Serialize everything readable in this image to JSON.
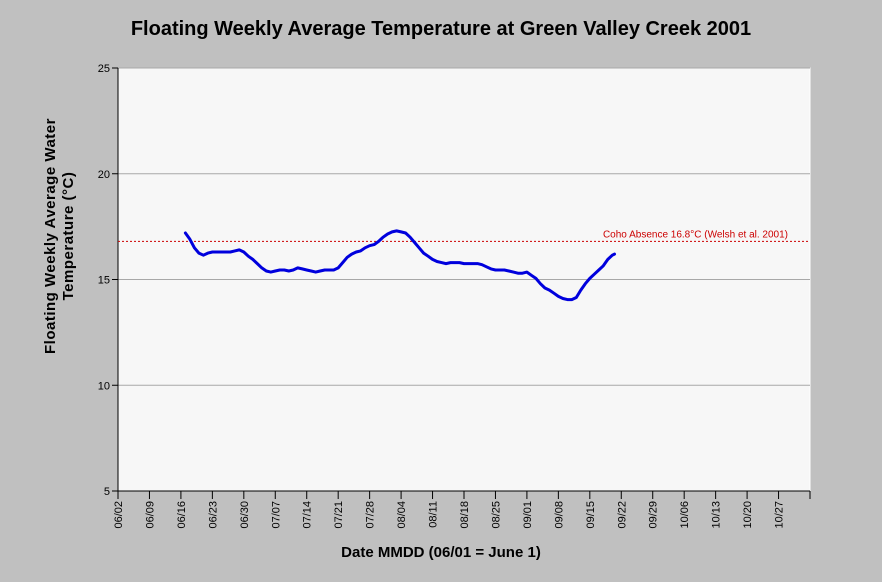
{
  "chart_data": {
    "type": "line",
    "title": "Floating Weekly Average Temperature at Green Valley Creek 2001",
    "ylabel_line1": "Floating Weekly Average Water",
    "ylabel_line2": "Temperature (°C)",
    "xlabel": "Date MMDD (06/01 = June 1)",
    "ylim": [
      5,
      25
    ],
    "yticks": [
      5,
      10,
      15,
      20,
      25
    ],
    "xlim": [
      0,
      154
    ],
    "xticks": [
      {
        "day": 0,
        "label": "06/02"
      },
      {
        "day": 7,
        "label": "06/09"
      },
      {
        "day": 14,
        "label": "06/16"
      },
      {
        "day": 21,
        "label": "06/23"
      },
      {
        "day": 28,
        "label": "06/30"
      },
      {
        "day": 35,
        "label": "07/07"
      },
      {
        "day": 42,
        "label": "07/14"
      },
      {
        "day": 49,
        "label": "07/21"
      },
      {
        "day": 56,
        "label": "07/28"
      },
      {
        "day": 63,
        "label": "08/04"
      },
      {
        "day": 70,
        "label": "08/11"
      },
      {
        "day": 77,
        "label": "08/18"
      },
      {
        "day": 84,
        "label": "08/25"
      },
      {
        "day": 91,
        "label": "09/01"
      },
      {
        "day": 98,
        "label": "09/08"
      },
      {
        "day": 105,
        "label": "09/15"
      },
      {
        "day": 112,
        "label": "09/22"
      },
      {
        "day": 119,
        "label": "09/29"
      },
      {
        "day": 126,
        "label": "10/06"
      },
      {
        "day": 133,
        "label": "10/13"
      },
      {
        "day": 140,
        "label": "10/20"
      },
      {
        "day": 147,
        "label": "10/27"
      }
    ],
    "grid": true,
    "reference_line": {
      "value": 16.8,
      "label": "Coho Absence 16.8°C (Welsh et al. 2001)",
      "color": "#cc0000"
    },
    "series": [
      {
        "color": "#0000dd",
        "points": [
          [
            15.0,
            17.2
          ],
          [
            16.0,
            16.9
          ],
          [
            17.0,
            16.5
          ],
          [
            18.0,
            16.25
          ],
          [
            19.0,
            16.15
          ],
          [
            20.0,
            16.25
          ],
          [
            21.0,
            16.3
          ],
          [
            22.0,
            16.3
          ],
          [
            23.0,
            16.3
          ],
          [
            24.0,
            16.3
          ],
          [
            25.0,
            16.3
          ],
          [
            26.0,
            16.35
          ],
          [
            27.0,
            16.4
          ],
          [
            28.0,
            16.3
          ],
          [
            29.0,
            16.1
          ],
          [
            30.0,
            15.95
          ],
          [
            31.0,
            15.75
          ],
          [
            32.0,
            15.55
          ],
          [
            33.0,
            15.4
          ],
          [
            34.0,
            15.35
          ],
          [
            35.0,
            15.4
          ],
          [
            36.0,
            15.45
          ],
          [
            37.0,
            15.45
          ],
          [
            38.0,
            15.4
          ],
          [
            39.0,
            15.45
          ],
          [
            40.0,
            15.55
          ],
          [
            41.0,
            15.5
          ],
          [
            42.0,
            15.45
          ],
          [
            43.0,
            15.4
          ],
          [
            44.0,
            15.35
          ],
          [
            45.0,
            15.4
          ],
          [
            46.0,
            15.45
          ],
          [
            47.0,
            15.45
          ],
          [
            48.0,
            15.45
          ],
          [
            49.0,
            15.55
          ],
          [
            50.0,
            15.8
          ],
          [
            51.0,
            16.05
          ],
          [
            52.0,
            16.2
          ],
          [
            53.0,
            16.3
          ],
          [
            54.0,
            16.35
          ],
          [
            55.0,
            16.5
          ],
          [
            56.0,
            16.6
          ],
          [
            57.0,
            16.65
          ],
          [
            58.0,
            16.8
          ],
          [
            59.0,
            17.0
          ],
          [
            60.0,
            17.15
          ],
          [
            61.0,
            17.25
          ],
          [
            62.0,
            17.3
          ],
          [
            63.0,
            17.25
          ],
          [
            64.0,
            17.2
          ],
          [
            65.0,
            17.0
          ],
          [
            66.0,
            16.75
          ],
          [
            67.0,
            16.5
          ],
          [
            68.0,
            16.25
          ],
          [
            69.0,
            16.1
          ],
          [
            70.0,
            15.95
          ],
          [
            71.0,
            15.85
          ],
          [
            72.0,
            15.8
          ],
          [
            73.0,
            15.75
          ],
          [
            74.0,
            15.8
          ],
          [
            75.0,
            15.8
          ],
          [
            76.0,
            15.8
          ],
          [
            77.0,
            15.75
          ],
          [
            78.0,
            15.75
          ],
          [
            79.0,
            15.75
          ],
          [
            80.0,
            15.75
          ],
          [
            81.0,
            15.7
          ],
          [
            82.0,
            15.6
          ],
          [
            83.0,
            15.5
          ],
          [
            84.0,
            15.45
          ],
          [
            85.0,
            15.45
          ],
          [
            86.0,
            15.45
          ],
          [
            87.0,
            15.4
          ],
          [
            88.0,
            15.35
          ],
          [
            89.0,
            15.3
          ],
          [
            90.0,
            15.3
          ],
          [
            91.0,
            15.35
          ],
          [
            92.0,
            15.2
          ],
          [
            93.0,
            15.05
          ],
          [
            94.0,
            14.8
          ],
          [
            95.0,
            14.6
          ],
          [
            96.0,
            14.5
          ],
          [
            97.0,
            14.35
          ],
          [
            98.0,
            14.2
          ],
          [
            99.0,
            14.1
          ],
          [
            100.0,
            14.05
          ],
          [
            101.0,
            14.05
          ],
          [
            102.0,
            14.15
          ],
          [
            103.0,
            14.5
          ],
          [
            104.0,
            14.8
          ],
          [
            105.0,
            15.05
          ],
          [
            106.0,
            15.25
          ],
          [
            107.0,
            15.45
          ],
          [
            108.0,
            15.65
          ],
          [
            109.0,
            15.95
          ],
          [
            110.0,
            16.15
          ],
          [
            110.5,
            16.2
          ]
        ]
      }
    ]
  }
}
